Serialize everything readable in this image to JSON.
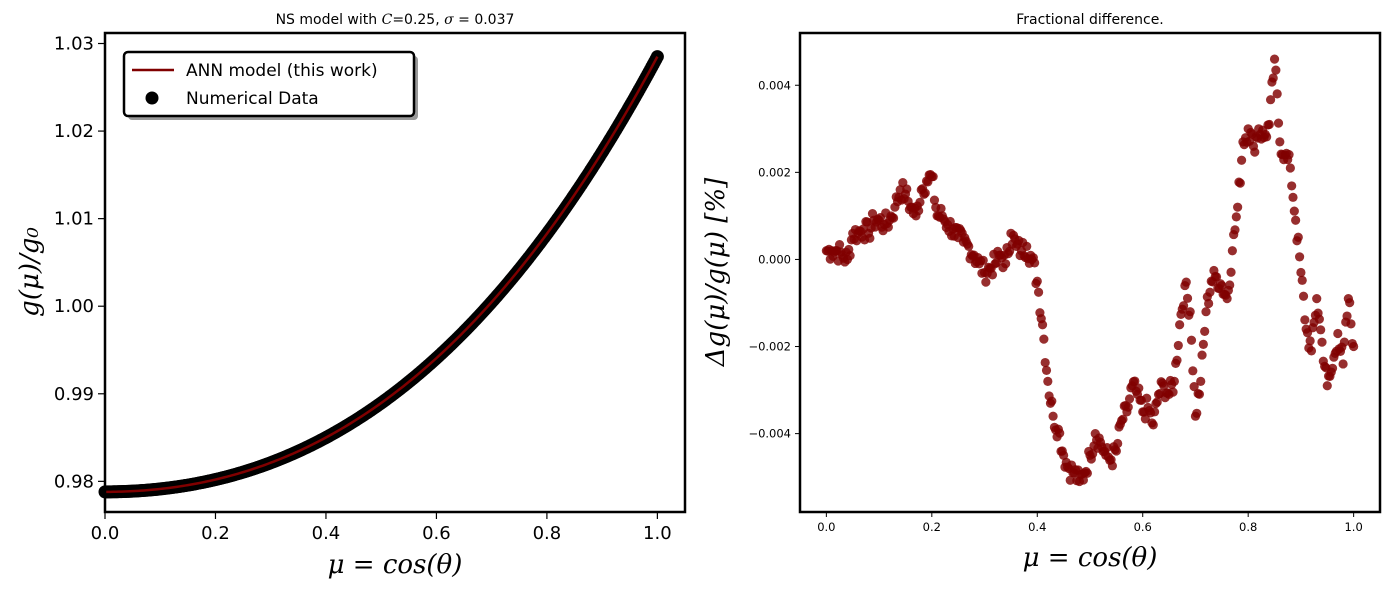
{
  "chart_data": [
    {
      "type": "line",
      "title": "NS model with C=0.25, σ = 0.037",
      "title_parts": {
        "prefix": "NS model with ",
        "c_symbol": "C",
        "c_value": "=0.25, ",
        "sigma_symbol": "σ",
        "sigma_value": " = 0.037"
      },
      "xlabel": "μ = cos(θ)",
      "ylabel": "g(μ)/g₀",
      "xlim": [
        0.0,
        1.05
      ],
      "ylim": [
        0.9765,
        1.0312
      ],
      "xticks": [
        "0.0",
        "0.2",
        "0.4",
        "0.6",
        "0.8",
        "1.0"
      ],
      "yticks": [
        "0.98",
        "0.99",
        "1.00",
        "1.01",
        "1.02",
        "1.03"
      ],
      "grid": false,
      "legend_position": "upper-left",
      "series": [
        {
          "name": "ANN model (this work)",
          "kind": "line",
          "color": "#800000"
        },
        {
          "name": "Numerical Data",
          "kind": "scatter",
          "color": "#000000"
        }
      ],
      "curve_model": {
        "form": "a + b*x^2 + c*x^3",
        "a": 0.9788,
        "b": 0.0315,
        "c": 0.0182,
        "x_range": [
          0.0,
          1.0
        ],
        "points": 400
      }
    },
    {
      "type": "scatter",
      "title": "Fractional difference.",
      "xlabel": "μ = cos(θ)",
      "ylabel": "Δg(μ)/g(μ) [%]",
      "xlim": [
        -0.05,
        1.05
      ],
      "ylim": [
        -0.0058,
        0.0052
      ],
      "xticks": [
        "0.0",
        "0.2",
        "0.4",
        "0.6",
        "0.8",
        "1.0"
      ],
      "yticks": [
        "0.004",
        "0.002",
        "0.000",
        "−0.002",
        "−0.004"
      ],
      "grid": false,
      "color": "#800000",
      "x": [
        0.0,
        0.01,
        0.02,
        0.03,
        0.04,
        0.05,
        0.06,
        0.07,
        0.08,
        0.09,
        0.1,
        0.11,
        0.12,
        0.13,
        0.14,
        0.15,
        0.16,
        0.17,
        0.18,
        0.19,
        0.2,
        0.21,
        0.22,
        0.23,
        0.24,
        0.25,
        0.26,
        0.27,
        0.28,
        0.29,
        0.3,
        0.31,
        0.32,
        0.33,
        0.34,
        0.35,
        0.36,
        0.37,
        0.38,
        0.39,
        0.4,
        0.41,
        0.42,
        0.43,
        0.44,
        0.45,
        0.46,
        0.47,
        0.48,
        0.49,
        0.5,
        0.51,
        0.52,
        0.53,
        0.54,
        0.55,
        0.56,
        0.57,
        0.58,
        0.59,
        0.6,
        0.61,
        0.62,
        0.63,
        0.64,
        0.65,
        0.66,
        0.67,
        0.68,
        0.69,
        0.7,
        0.71,
        0.72,
        0.73,
        0.74,
        0.75,
        0.76,
        0.77,
        0.78,
        0.79,
        0.8,
        0.81,
        0.82,
        0.83,
        0.84,
        0.85,
        0.86,
        0.87,
        0.88,
        0.89,
        0.9,
        0.91,
        0.92,
        0.93,
        0.94,
        0.95,
        0.96,
        0.97,
        0.98,
        0.99,
        1.0
      ],
      "y": [
        0.0002,
        0.0002,
        0.0002,
        0.0001,
        0.0,
        0.0006,
        0.0006,
        0.0007,
        0.0006,
        0.0009,
        0.0009,
        0.0008,
        0.0009,
        0.0012,
        0.0016,
        0.0015,
        0.0012,
        0.001,
        0.0016,
        0.0018,
        0.0019,
        0.001,
        0.001,
        0.0008,
        0.0007,
        0.0005,
        0.0004,
        0.0003,
        0.0001,
        -0.0001,
        -0.0003,
        -0.0002,
        -0.0001,
        0.0001,
        -0.0001,
        0.0006,
        0.0003,
        0.0002,
        0.0003,
        0.0,
        -0.0005,
        -0.0015,
        -0.0028,
        -0.0036,
        -0.0039,
        -0.0045,
        -0.0048,
        -0.0049,
        -0.0051,
        -0.0049,
        -0.0045,
        -0.004,
        -0.0042,
        -0.0045,
        -0.0046,
        -0.0044,
        -0.0037,
        -0.0035,
        -0.0029,
        -0.0031,
        -0.0035,
        -0.0034,
        -0.0038,
        -0.0031,
        -0.0029,
        -0.0031,
        -0.0028,
        -0.0015,
        -0.0006,
        -0.0012,
        -0.0036,
        -0.0028,
        -0.0012,
        -0.0005,
        -0.0004,
        -0.0006,
        -0.0009,
        0.0002,
        0.0012,
        0.0027,
        0.003,
        0.0026,
        0.003,
        0.0028,
        0.0031,
        0.0046,
        0.0027,
        0.0024,
        0.0021,
        0.0009,
        -0.0003,
        -0.0016,
        -0.0021,
        -0.0009,
        -0.0019,
        -0.0029,
        -0.0025,
        -0.0017,
        -0.0024,
        -0.0009,
        -0.002
      ]
    }
  ],
  "legend": {
    "line_label": "ANN model (this work)",
    "scatter_label": "Numerical Data"
  }
}
